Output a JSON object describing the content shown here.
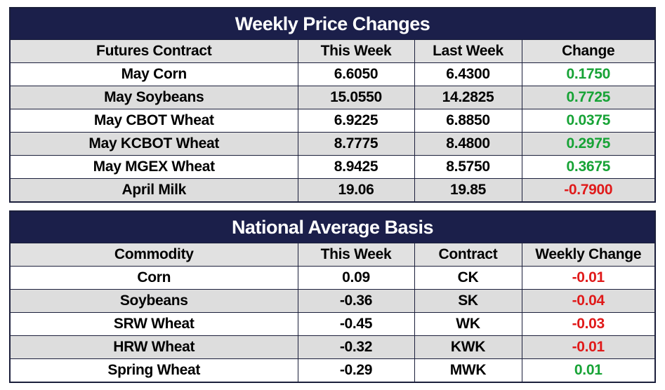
{
  "weekly_price_changes": {
    "title": "Weekly Price Changes",
    "headers": [
      "Futures Contract",
      "This Week",
      "Last Week",
      "Change"
    ],
    "rows": [
      {
        "contract": "May Corn",
        "this_week": "6.6050",
        "last_week": "6.4300",
        "change": "0.1750",
        "direction": "pos"
      },
      {
        "contract": "May Soybeans",
        "this_week": "15.0550",
        "last_week": "14.2825",
        "change": "0.7725",
        "direction": "pos"
      },
      {
        "contract": "May CBOT Wheat",
        "this_week": "6.9225",
        "last_week": "6.8850",
        "change": "0.0375",
        "direction": "pos"
      },
      {
        "contract": "May KCBOT Wheat",
        "this_week": "8.7775",
        "last_week": "8.4800",
        "change": "0.2975",
        "direction": "pos"
      },
      {
        "contract": "May MGEX Wheat",
        "this_week": "8.9425",
        "last_week": "8.5750",
        "change": "0.3675",
        "direction": "pos"
      },
      {
        "contract": "April Milk",
        "this_week": "19.06",
        "last_week": "19.85",
        "change": "-0.7900",
        "direction": "neg"
      }
    ]
  },
  "national_average_basis": {
    "title": "National Average Basis",
    "headers": [
      "Commodity",
      "This Week",
      "Contract",
      "Weekly Change"
    ],
    "rows": [
      {
        "commodity": "Corn",
        "this_week": "0.09",
        "contract": "CK",
        "weekly_change": "-0.01",
        "direction": "neg"
      },
      {
        "commodity": "Soybeans",
        "this_week": "-0.36",
        "contract": "SK",
        "weekly_change": "-0.04",
        "direction": "neg"
      },
      {
        "commodity": "SRW Wheat",
        "this_week": "-0.45",
        "contract": "WK",
        "weekly_change": "-0.03",
        "direction": "neg"
      },
      {
        "commodity": "HRW Wheat",
        "this_week": "-0.32",
        "contract": "KWK",
        "weekly_change": "-0.01",
        "direction": "neg"
      },
      {
        "commodity": "Spring Wheat",
        "this_week": "-0.29",
        "contract": "MWK",
        "weekly_change": "0.01",
        "direction": "pos"
      }
    ]
  },
  "colors": {
    "title_bg": "#1b1f4a",
    "positive": "#17a336",
    "negative": "#e01a1a",
    "shade": "#dddddd"
  }
}
